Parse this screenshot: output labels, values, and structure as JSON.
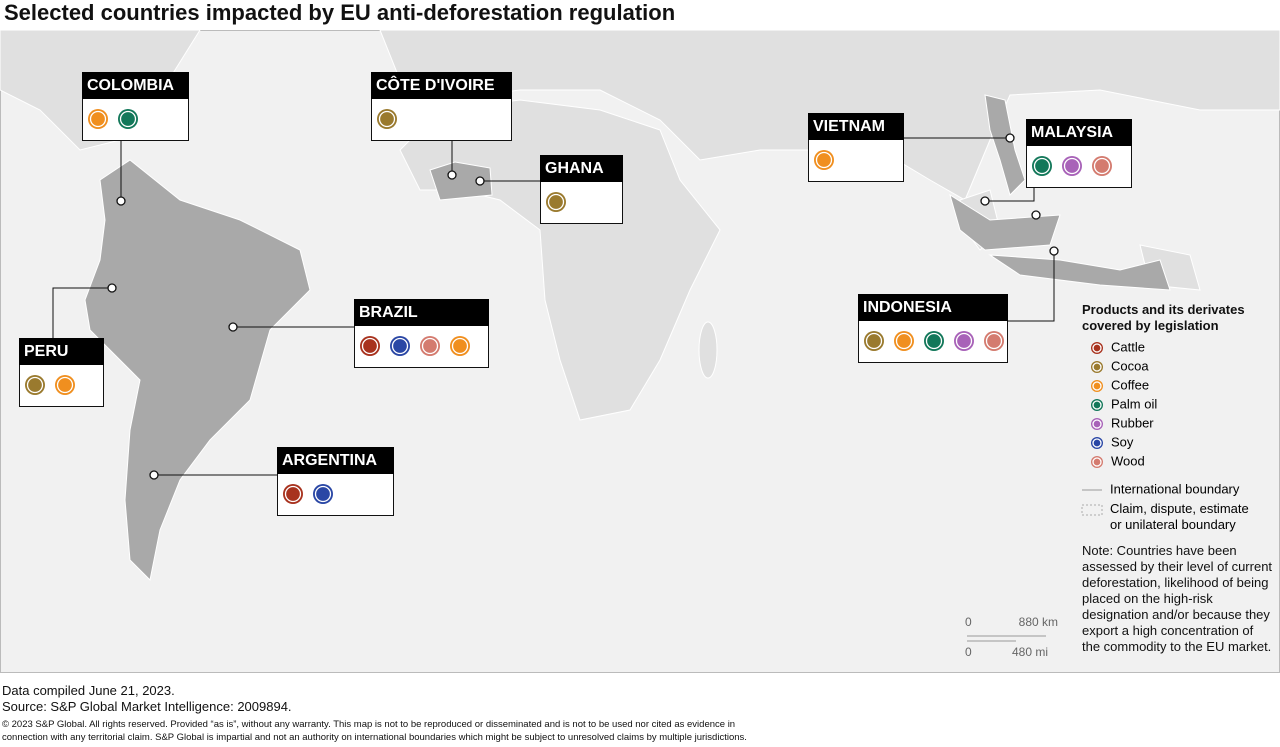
{
  "title": "Selected countries impacted by EU anti-deforestation regulation",
  "countries": [
    {
      "name": "COLOMBIA",
      "products": [
        "Coffee",
        "Palm oil"
      ]
    },
    {
      "name": "CÔTE D'IVOIRE",
      "products": [
        "Cocoa"
      ]
    },
    {
      "name": "GHANA",
      "products": [
        "Cocoa"
      ]
    },
    {
      "name": "VIETNAM",
      "products": [
        "Coffee"
      ]
    },
    {
      "name": "MALAYSIA",
      "products": [
        "Palm oil",
        "Rubber",
        "Wood"
      ]
    },
    {
      "name": "PERU",
      "products": [
        "Cocoa",
        "Coffee"
      ]
    },
    {
      "name": "BRAZIL",
      "products": [
        "Cattle",
        "Soy",
        "Wood",
        "Coffee"
      ]
    },
    {
      "name": "ARGENTINA",
      "products": [
        "Cattle",
        "Soy"
      ]
    },
    {
      "name": "INDONESIA",
      "products": [
        "Cocoa",
        "Coffee",
        "Palm oil",
        "Rubber",
        "Wood"
      ]
    }
  ],
  "legend": {
    "title": "Products and its derivates covered by legislation",
    "items": [
      {
        "name": "Cattle",
        "color": "#a8321e"
      },
      {
        "name": "Cocoa",
        "color": "#9a7a2e"
      },
      {
        "name": "Coffee",
        "color": "#f08f1f"
      },
      {
        "name": "Palm oil",
        "color": "#13785a"
      },
      {
        "name": "Rubber",
        "color": "#a862b8"
      },
      {
        "name": "Soy",
        "color": "#2a47a5"
      },
      {
        "name": "Wood",
        "color": "#d47b6f"
      }
    ],
    "boundaries": [
      "International boundary",
      "Claim, dispute, estimate or unilateral boundary"
    ]
  },
  "note": "Note: Countries have been assessed by their level of current deforestation, likelihood of being placed on the high-risk designation and/or because they export a high concentration of the commodity to the EU market.",
  "scale": {
    "km": [
      "0",
      "880 km"
    ],
    "mi": [
      "0",
      "480 mi"
    ]
  },
  "footer": {
    "compiled": "Data compiled June 21, 2023.",
    "source": "Source: S&P Global Market Intelligence: 2009894.",
    "copyright": "© 2023 S&P Global. All rights reserved. Provided “as is”, without any warranty. This map is not to be reproduced or disseminated and is not to be used nor cited as evidence in connection with any territorial claim. S&P Global is impartial and not an authority on international boundaries which might be subject to unresolved claims by multiple jurisdictions."
  }
}
